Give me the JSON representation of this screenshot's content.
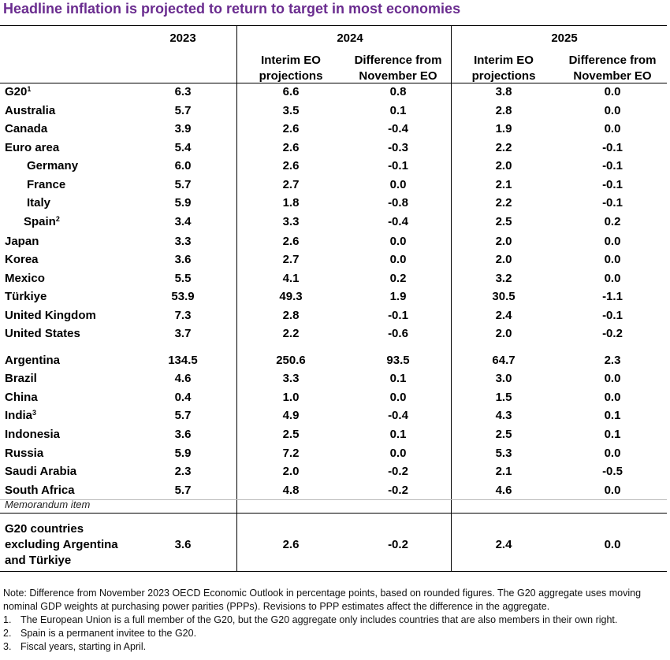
{
  "title": "Headline inflation is projected to return to target in most economies",
  "header": {
    "years": [
      "2023",
      "2024",
      "2025"
    ],
    "sub_2024_proj": [
      "Interim EO",
      "projections"
    ],
    "sub_2024_diff": [
      "Difference from",
      "November EO"
    ],
    "sub_2025_proj": [
      "Interim EO",
      "projections"
    ],
    "sub_2025_diff": [
      "Difference from",
      "November EO"
    ]
  },
  "rows": [
    {
      "name": "G20",
      "sup": "1",
      "v": [
        "6.3",
        "6.6",
        "0.8",
        "3.8",
        "0.0"
      ]
    },
    {
      "name": "Australia",
      "sup": "",
      "v": [
        "5.7",
        "3.5",
        "0.1",
        "2.8",
        "0.0"
      ]
    },
    {
      "name": "Canada",
      "sup": "",
      "v": [
        "3.9",
        "2.6",
        "-0.4",
        "1.9",
        "0.0"
      ]
    },
    {
      "name": "Euro area",
      "sup": "",
      "v": [
        "5.4",
        "2.6",
        "-0.3",
        "2.2",
        "-0.1"
      ]
    },
    {
      "name": "Germany",
      "sup": "",
      "v": [
        "6.0",
        "2.6",
        "-0.1",
        "2.0",
        "-0.1"
      ]
    },
    {
      "name": "France",
      "sup": "",
      "v": [
        "5.7",
        "2.7",
        "0.0",
        "2.1",
        "-0.1"
      ]
    },
    {
      "name": "Italy",
      "sup": "",
      "v": [
        "5.9",
        "1.8",
        "-0.8",
        "2.2",
        "-0.1"
      ]
    },
    {
      "name": "Spain",
      "sup": "2",
      "v": [
        "3.4",
        "3.3",
        "-0.4",
        "2.5",
        "0.2"
      ]
    },
    {
      "name": "Japan",
      "sup": "",
      "v": [
        "3.3",
        "2.6",
        "0.0",
        "2.0",
        "0.0"
      ]
    },
    {
      "name": "Korea",
      "sup": "",
      "v": [
        "3.6",
        "2.7",
        "0.0",
        "2.0",
        "0.0"
      ]
    },
    {
      "name": "Mexico",
      "sup": "",
      "v": [
        "5.5",
        "4.1",
        "0.2",
        "3.2",
        "0.0"
      ]
    },
    {
      "name": "Türkiye",
      "sup": "",
      "v": [
        "53.9",
        "49.3",
        "1.9",
        "30.5",
        "-1.1"
      ]
    },
    {
      "name": "United Kingdom",
      "sup": "",
      "v": [
        "7.3",
        "2.8",
        "-0.1",
        "2.4",
        "-0.1"
      ]
    },
    {
      "name": "United States",
      "sup": "",
      "v": [
        "3.7",
        "2.2",
        "-0.6",
        "2.0",
        "-0.2"
      ]
    },
    {
      "name": "Argentina",
      "sup": "",
      "v": [
        "134.5",
        "250.6",
        "93.5",
        "64.7",
        "2.3"
      ]
    },
    {
      "name": "Brazil",
      "sup": "",
      "v": [
        "4.6",
        "3.3",
        "0.1",
        "3.0",
        "0.0"
      ]
    },
    {
      "name": "China",
      "sup": "",
      "v": [
        "0.4",
        "1.0",
        "0.0",
        "1.5",
        "0.0"
      ]
    },
    {
      "name": "India",
      "sup": "3",
      "v": [
        "5.7",
        "4.9",
        "-0.4",
        "4.3",
        "0.1"
      ]
    },
    {
      "name": "Indonesia",
      "sup": "",
      "v": [
        "3.6",
        "2.5",
        "0.1",
        "2.5",
        "0.1"
      ]
    },
    {
      "name": "Russia",
      "sup": "",
      "v": [
        "5.9",
        "7.2",
        "0.0",
        "5.3",
        "0.0"
      ]
    },
    {
      "name": "Saudi Arabia",
      "sup": "",
      "v": [
        "2.3",
        "2.0",
        "-0.2",
        "2.1",
        "-0.5"
      ]
    },
    {
      "name": "South Africa",
      "sup": "",
      "v": [
        "5.7",
        "4.8",
        "-0.2",
        "4.6",
        "0.0"
      ]
    }
  ],
  "memo_label": "Memorandum item",
  "memo_row": {
    "name_lines": [
      "G20 countries",
      "excluding Argentina",
      "and Türkiye"
    ],
    "v": [
      "3.6",
      "2.6",
      "-0.2",
      "2.4",
      "0.0"
    ]
  },
  "notes": {
    "main": "Note: Difference from November 2023 OECD Economic Outlook in percentage points, based on rounded figures. The G20 aggregate uses moving nominal GDP weights at purchasing power parities (PPPs). Revisions to PPP estimates affect the difference in the aggregate.",
    "footnotes": [
      {
        "num": "1.",
        "text": "The European Union is a full member of the G20, but the G20 aggregate only includes countries that are also members in their own right."
      },
      {
        "num": "2.",
        "text": "Spain is a permanent invitee to the G20."
      },
      {
        "num": "3.",
        "text": "Fiscal years, starting in April."
      }
    ]
  }
}
